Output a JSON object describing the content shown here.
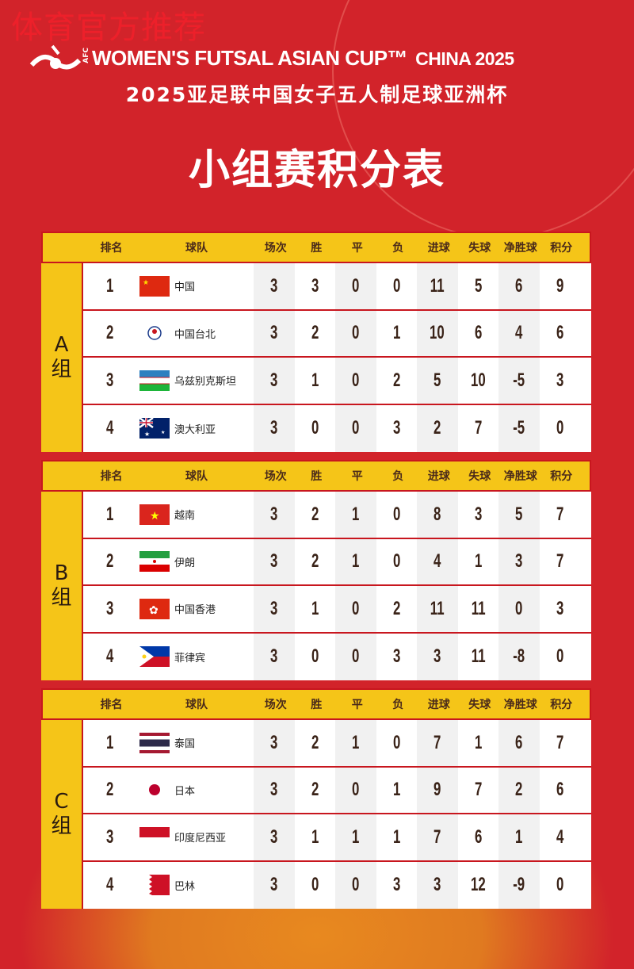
{
  "watermark": "体育官方推荐",
  "header": {
    "afc": "AFC",
    "title_en": "WOMEN'S FUTSAL ASIAN CUP™",
    "title_en_suffix": "CHINA 2025",
    "subtitle_cn": "2025亚足联中国女子五人制足球亚洲杯",
    "page_title": "小组赛积分表"
  },
  "columns": [
    "排名",
    "球队",
    "场次",
    "胜",
    "平",
    "负",
    "进球",
    "失球",
    "净胜球",
    "积分"
  ],
  "groups": [
    {
      "label": "A",
      "suffix": "组",
      "teams": [
        {
          "rank": "1",
          "name": "中国",
          "flag": "china-flag",
          "stats": [
            "3",
            "3",
            "0",
            "0",
            "11",
            "5",
            "6",
            "9"
          ]
        },
        {
          "rank": "2",
          "name": "中国台北",
          "flag": "chinese-taipei-flag",
          "stats": [
            "3",
            "2",
            "0",
            "1",
            "10",
            "6",
            "4",
            "6"
          ]
        },
        {
          "rank": "3",
          "name": "乌兹别克斯坦",
          "flag": "uzbekistan-flag",
          "stats": [
            "3",
            "1",
            "0",
            "2",
            "5",
            "10",
            "-5",
            "3"
          ]
        },
        {
          "rank": "4",
          "name": "澳大利亚",
          "flag": "australia-flag",
          "stats": [
            "3",
            "0",
            "0",
            "3",
            "2",
            "7",
            "-5",
            "0"
          ]
        }
      ]
    },
    {
      "label": "B",
      "suffix": "组",
      "teams": [
        {
          "rank": "1",
          "name": "越南",
          "flag": "vietnam-flag",
          "stats": [
            "3",
            "2",
            "1",
            "0",
            "8",
            "3",
            "5",
            "7"
          ]
        },
        {
          "rank": "2",
          "name": "伊朗",
          "flag": "iran-flag",
          "stats": [
            "3",
            "2",
            "1",
            "0",
            "4",
            "1",
            "3",
            "7"
          ]
        },
        {
          "rank": "3",
          "name": "中国香港",
          "flag": "hong-kong-flag",
          "stats": [
            "3",
            "1",
            "0",
            "2",
            "11",
            "11",
            "0",
            "3"
          ]
        },
        {
          "rank": "4",
          "name": "菲律宾",
          "flag": "philippines-flag",
          "stats": [
            "3",
            "0",
            "0",
            "3",
            "3",
            "11",
            "-8",
            "0"
          ]
        }
      ]
    },
    {
      "label": "C",
      "suffix": "组",
      "teams": [
        {
          "rank": "1",
          "name": "泰国",
          "flag": "thailand-flag",
          "stats": [
            "3",
            "2",
            "1",
            "0",
            "7",
            "1",
            "6",
            "7"
          ]
        },
        {
          "rank": "2",
          "name": "日本",
          "flag": "japan-flag",
          "stats": [
            "3",
            "2",
            "0",
            "1",
            "9",
            "7",
            "2",
            "6"
          ]
        },
        {
          "rank": "3",
          "name": "印度尼西亚",
          "flag": "indonesia-flag",
          "stats": [
            "3",
            "1",
            "1",
            "1",
            "7",
            "6",
            "1",
            "4"
          ]
        },
        {
          "rank": "4",
          "name": "巴林",
          "flag": "bahrain-flag",
          "stats": [
            "3",
            "0",
            "0",
            "3",
            "3",
            "12",
            "-9",
            "0"
          ]
        }
      ]
    }
  ],
  "colors": {
    "background": "#d2232a",
    "header_band": "#f5c518",
    "text": "#3a2318"
  }
}
